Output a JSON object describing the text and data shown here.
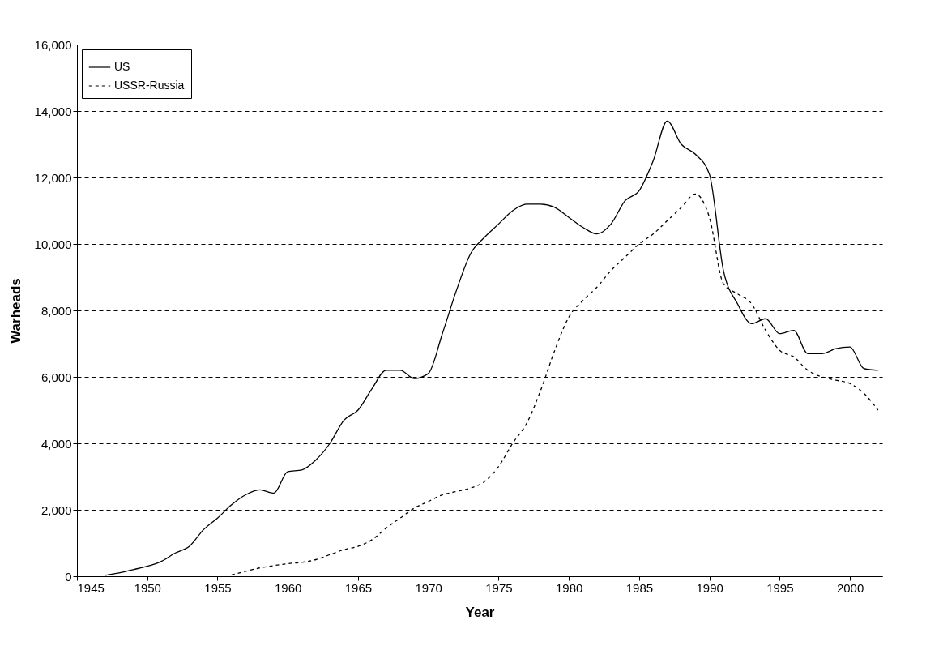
{
  "chart_data": {
    "type": "line",
    "xlabel": "Year",
    "ylabel": "Warheads",
    "x": [
      1947,
      1948,
      1949,
      1950,
      1951,
      1952,
      1953,
      1954,
      1955,
      1956,
      1957,
      1958,
      1959,
      1960,
      1961,
      1962,
      1963,
      1964,
      1965,
      1966,
      1967,
      1968,
      1969,
      1970,
      1971,
      1972,
      1973,
      1974,
      1975,
      1976,
      1977,
      1978,
      1979,
      1980,
      1981,
      1982,
      1983,
      1984,
      1985,
      1986,
      1987,
      1988,
      1989,
      1990,
      1991,
      1992,
      1993,
      1994,
      1995,
      1996,
      1997,
      1998,
      1999,
      2000,
      2001,
      2002
    ],
    "series": [
      {
        "name": "US",
        "color": "#000000",
        "line_style": "solid",
        "values": [
          30,
          100,
          200,
          300,
          450,
          700,
          900,
          1400,
          1750,
          2150,
          2450,
          2600,
          2500,
          3150,
          3200,
          3500,
          4000,
          4700,
          5000,
          5650,
          6200,
          6200,
          5950,
          6100,
          7300,
          8600,
          9700,
          10200,
          10600,
          11000,
          11200,
          11200,
          11100,
          10800,
          10500,
          10300,
          10600,
          11300,
          11600,
          12500,
          13700,
          13000,
          12700,
          12100,
          9200,
          8200,
          7600,
          7750,
          7300,
          7400,
          6700,
          6700,
          6850,
          6900,
          6250,
          6200
        ]
      },
      {
        "name": "USSR-Russia",
        "color": "#000000",
        "line_style": "dashed",
        "x": [
          1956,
          1957,
          1958,
          1959,
          1960,
          1961,
          1962,
          1963,
          1964,
          1965,
          1966,
          1967,
          1968,
          1969,
          1970,
          1971,
          1972,
          1973,
          1974,
          1975,
          1976,
          1977,
          1978,
          1979,
          1980,
          1981,
          1982,
          1983,
          1984,
          1985,
          1986,
          1987,
          1988,
          1989,
          1990,
          1991,
          1992,
          1993,
          1994,
          1995,
          1996,
          1997,
          1998,
          1999,
          2000,
          2001,
          2002
        ],
        "values": [
          40,
          150,
          250,
          320,
          380,
          420,
          500,
          650,
          800,
          900,
          1100,
          1450,
          1750,
          2050,
          2250,
          2450,
          2550,
          2650,
          2850,
          3300,
          4000,
          4600,
          5600,
          6800,
          7800,
          8300,
          8700,
          9200,
          9600,
          10000,
          10300,
          10700,
          11100,
          11500,
          10800,
          8800,
          8500,
          8200,
          7400,
          6800,
          6600,
          6200,
          6000,
          5900,
          5800,
          5500,
          5000
        ]
      }
    ],
    "xlim": [
      1945,
      2002.3
    ],
    "xticks": [
      1945,
      1950,
      1955,
      1960,
      1965,
      1970,
      1975,
      1980,
      1985,
      1990,
      1995,
      2000
    ],
    "ylim": [
      0,
      16000
    ],
    "yticks": [
      0,
      {
        "value": 2000,
        "label": "2,000"
      },
      {
        "value": 4000,
        "label": "4,000"
      },
      {
        "value": 6000,
        "label": "6,000"
      },
      {
        "value": 8000,
        "label": "8,000"
      },
      {
        "value": 10000,
        "label": "10,000"
      },
      {
        "value": 12000,
        "label": "12,000"
      },
      {
        "value": 14000,
        "label": "14,000"
      },
      {
        "value": 16000,
        "label": "16,000"
      }
    ],
    "grid": "y",
    "legend": "top left"
  }
}
